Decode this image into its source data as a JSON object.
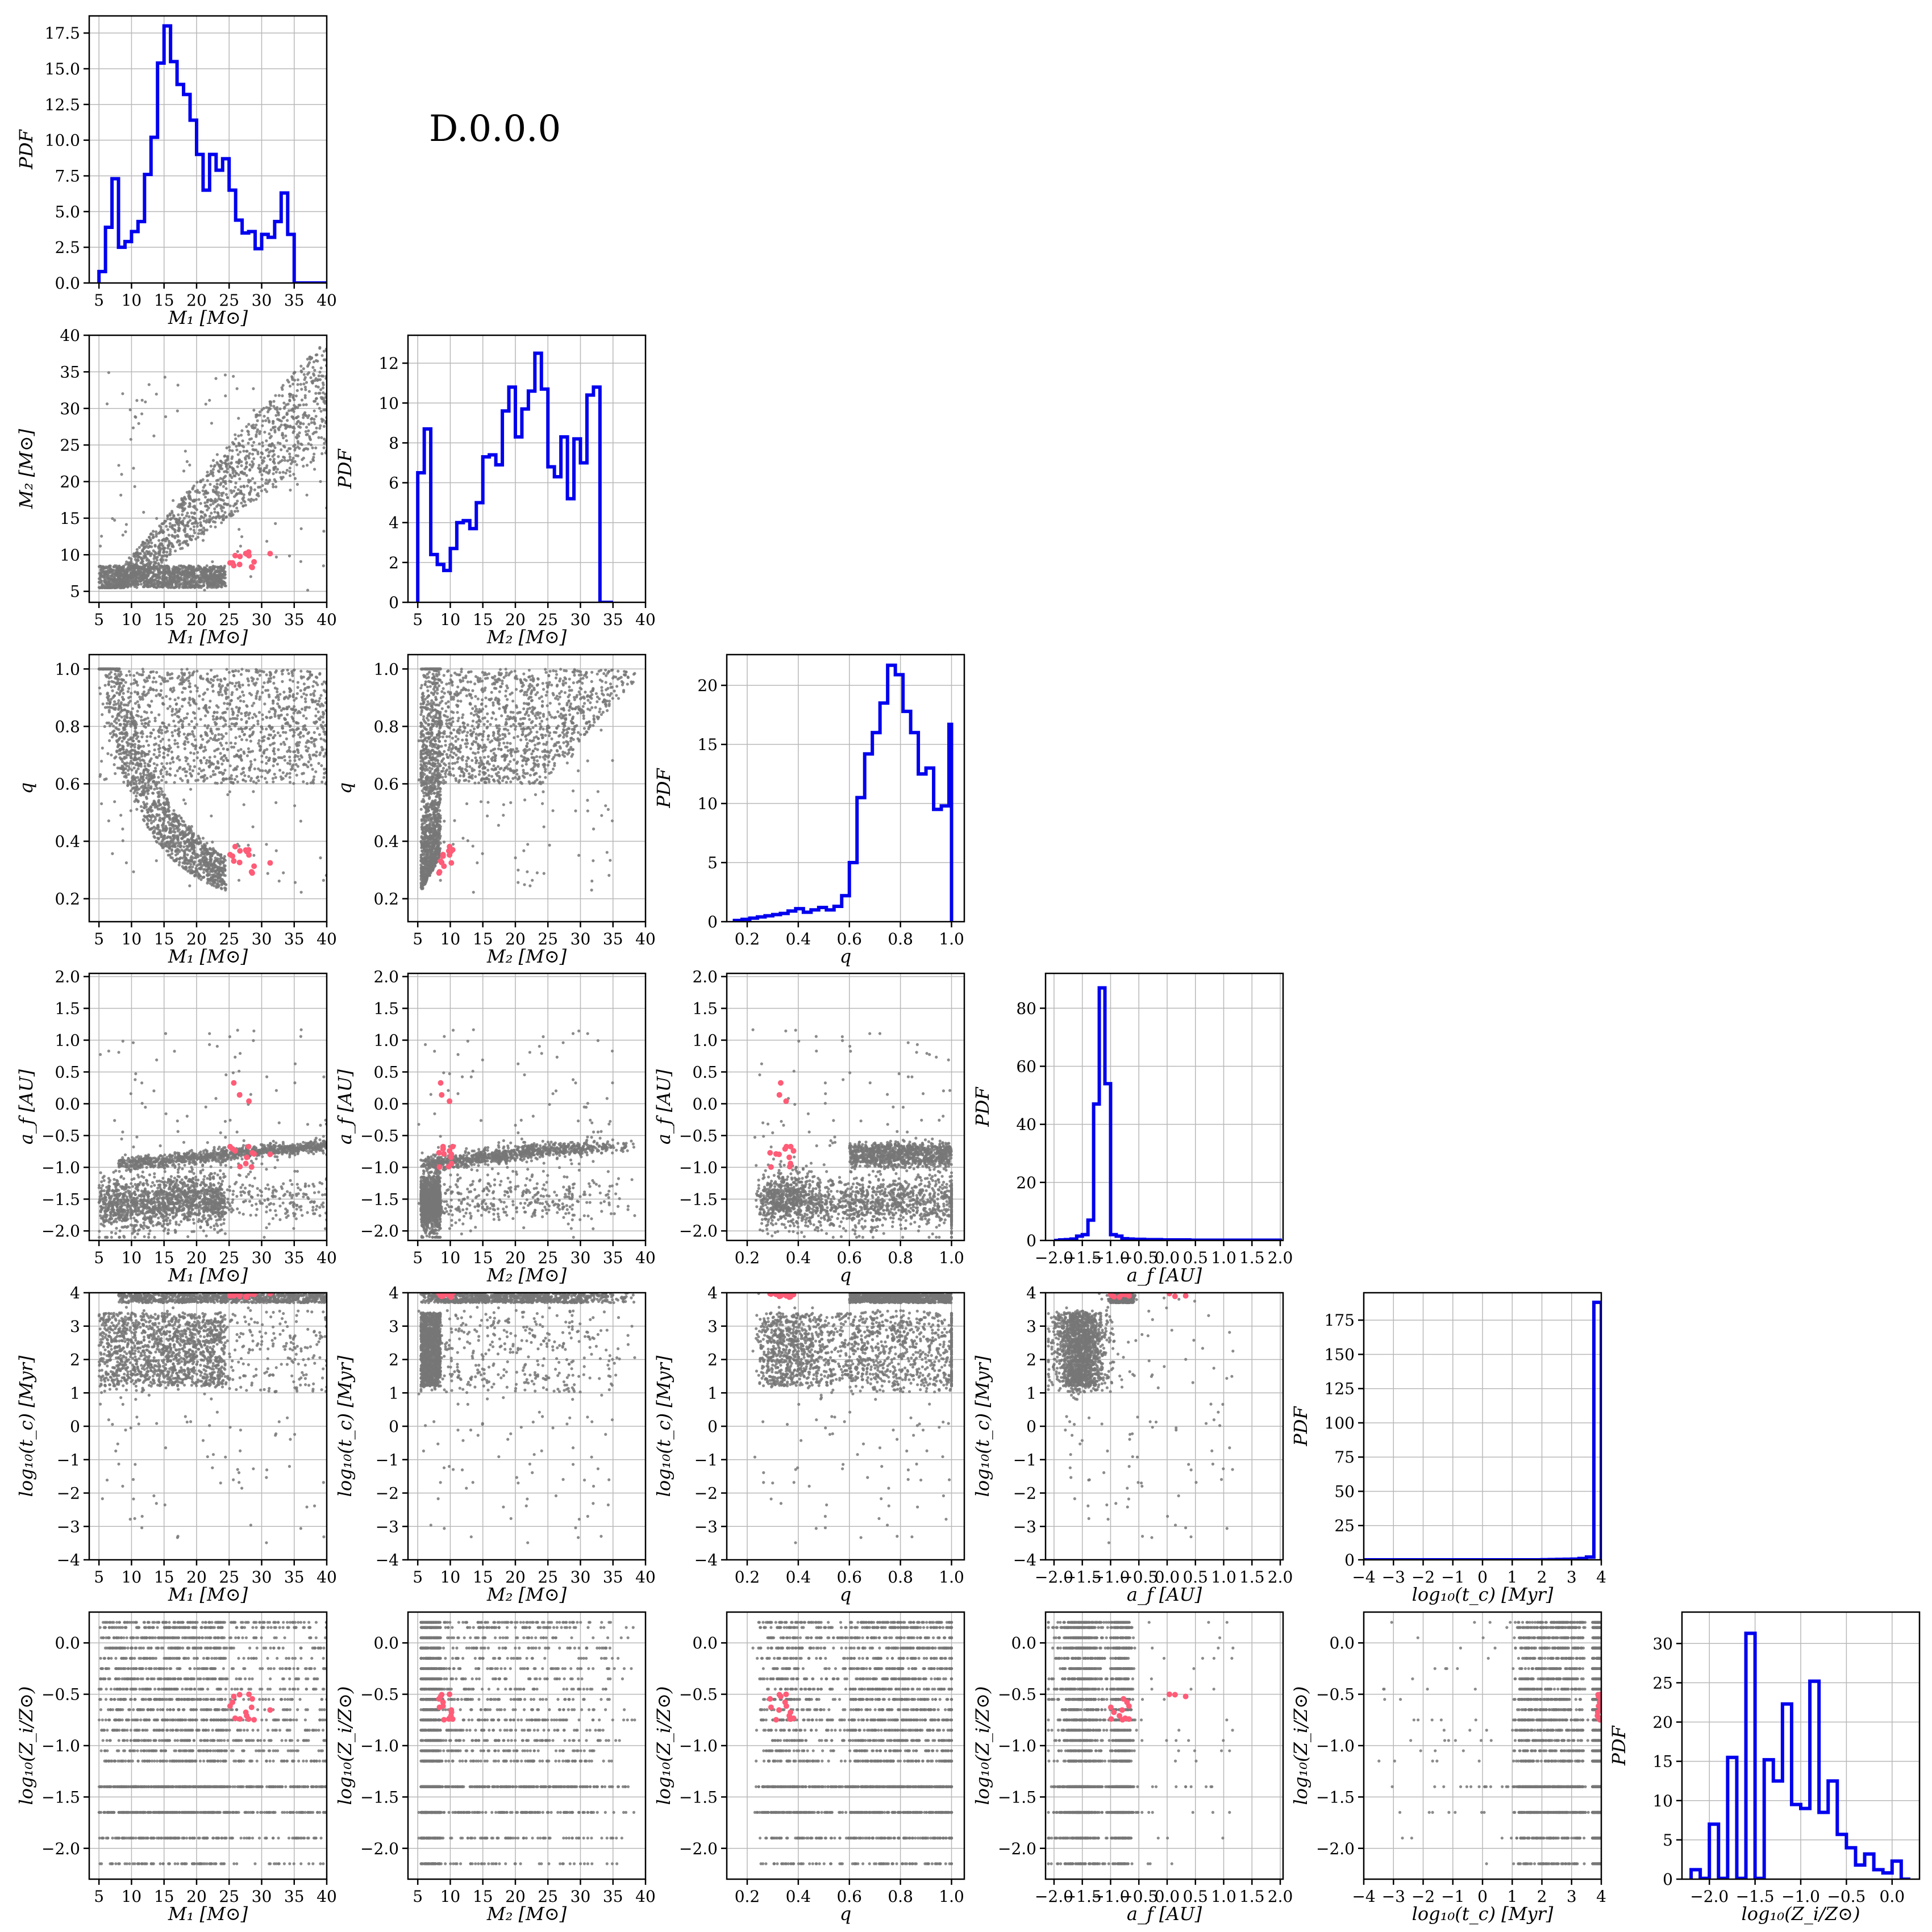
{
  "figure": {
    "label": "D.0.0.0",
    "histogram_ylabel": "PDF"
  },
  "colors": {
    "histogram": "#0000ee",
    "scatter": "#777777",
    "highlight": "#ff5c77"
  },
  "variables": [
    {
      "key": "m1",
      "label": "M₁ [M⊙]",
      "lim": [
        3.5,
        40
      ],
      "ticks": [
        "5",
        "10",
        "15",
        "20",
        "25",
        "30",
        "35",
        "40"
      ],
      "tick_values": [
        5,
        10,
        15,
        20,
        25,
        30,
        35,
        40
      ]
    },
    {
      "key": "m2",
      "label": "M₂ [M⊙]",
      "lim": [
        3.5,
        40
      ],
      "ticks": [
        "5",
        "10",
        "15",
        "20",
        "25",
        "30",
        "35",
        "40"
      ],
      "tick_values": [
        5,
        10,
        15,
        20,
        25,
        30,
        35,
        40
      ]
    },
    {
      "key": "q",
      "label": "q",
      "lim": [
        0.12,
        1.05
      ],
      "ticks": [
        "0.2",
        "0.4",
        "0.6",
        "0.8",
        "1.0"
      ],
      "tick_values": [
        0.2,
        0.4,
        0.6,
        0.8,
        1.0
      ]
    },
    {
      "key": "af",
      "label": "a_f [AU]",
      "lim": [
        -2.15,
        2.05
      ],
      "ticks": [
        "−2.0",
        "−1.5",
        "−1.0",
        "−0.5",
        "0.0",
        "0.5",
        "1.0",
        "1.5",
        "2.0"
      ],
      "tick_values": [
        -2.0,
        -1.5,
        -1.0,
        -0.5,
        0.0,
        0.5,
        1.0,
        1.5,
        2.0
      ]
    },
    {
      "key": "tc",
      "label": "log₁₀(t_c) [Myr]",
      "lim": [
        -4,
        4
      ],
      "ticks": [
        "−4",
        "−3",
        "−2",
        "−1",
        "0",
        "1",
        "2",
        "3",
        "4"
      ],
      "tick_values": [
        -4,
        -3,
        -2,
        -1,
        0,
        1,
        2,
        3,
        4
      ]
    },
    {
      "key": "z",
      "label": "log₁₀(Z_i/Z⊙)",
      "lim": [
        -2.3,
        0.3
      ],
      "ticks": [
        "−2.0",
        "−1.5",
        "−1.0",
        "−0.5",
        "0.0"
      ],
      "tick_values": [
        -2.0,
        -1.5,
        -1.0,
        -0.5,
        0.0
      ]
    }
  ],
  "axis_labels_printed": {
    "m1": "M₁ [M⊙]",
    "m2": "M₂ [M⊙]",
    "q": "q",
    "af": "a_f [AU]",
    "tc": "log₁₀(t_c) [Myr]",
    "z": "log₁₀(Z_i/Z⊙)"
  },
  "chart_data": [
    {
      "type": "histogram",
      "variable": "m1",
      "ylabel": "PDF",
      "ylim": [
        0,
        18.7
      ],
      "yticks": [
        "0.0",
        "2.5",
        "5.0",
        "7.5",
        "10.0",
        "12.5",
        "15.0",
        "17.5"
      ],
      "ytick_values": [
        0,
        2.5,
        5,
        7.5,
        10,
        12.5,
        15,
        17.5
      ],
      "edges": [
        5,
        6,
        7,
        8,
        9,
        10,
        11,
        12,
        13,
        14,
        15,
        16,
        17,
        18,
        19,
        20,
        21,
        22,
        23,
        24,
        25,
        26,
        27,
        28,
        29,
        30,
        31,
        32,
        33,
        34,
        35,
        36,
        37,
        38,
        39,
        40
      ],
      "values": [
        0.8,
        3.9,
        7.3,
        2.5,
        2.9,
        3.6,
        4.3,
        7.6,
        10.2,
        15.4,
        18.0,
        15.5,
        13.9,
        13.2,
        11.4,
        9.0,
        6.5,
        9.0,
        7.9,
        8.7,
        6.5,
        4.4,
        3.5,
        3.6,
        2.4,
        3.4,
        3.2,
        4.3,
        6.3,
        3.4,
        0.0,
        0.0,
        0.0,
        0.0,
        0.0
      ]
    },
    {
      "type": "histogram",
      "variable": "m2",
      "ylabel": "PDF",
      "ylim": [
        0,
        13.4
      ],
      "yticks": [
        "0",
        "2",
        "4",
        "6",
        "8",
        "10",
        "12"
      ],
      "ytick_values": [
        0,
        2,
        4,
        6,
        8,
        10,
        12
      ],
      "edges": [
        5,
        6,
        7,
        8,
        9,
        10,
        11,
        12,
        13,
        14,
        15,
        16,
        17,
        18,
        19,
        20,
        21,
        22,
        23,
        24,
        25,
        26,
        27,
        28,
        29,
        30,
        31,
        32,
        33,
        34,
        35
      ],
      "values": [
        6.5,
        8.7,
        2.4,
        1.9,
        1.6,
        2.7,
        4.0,
        4.1,
        3.7,
        5.0,
        7.3,
        7.4,
        6.9,
        9.6,
        10.8,
        8.3,
        9.7,
        10.6,
        12.5,
        10.7,
        6.8,
        6.3,
        8.3,
        5.2,
        8.2,
        7.0,
        10.4,
        10.8,
        0.0,
        0.0
      ]
    },
    {
      "type": "histogram",
      "variable": "q",
      "ylabel": "PDF",
      "ylim": [
        0,
        22.6
      ],
      "yticks": [
        "0",
        "5",
        "10",
        "15",
        "20"
      ],
      "ytick_values": [
        0,
        5,
        10,
        15,
        20
      ],
      "edges": [
        0.15,
        0.18,
        0.21,
        0.24,
        0.27,
        0.3,
        0.33,
        0.36,
        0.39,
        0.42,
        0.45,
        0.48,
        0.51,
        0.54,
        0.57,
        0.6,
        0.63,
        0.66,
        0.69,
        0.72,
        0.75,
        0.78,
        0.81,
        0.84,
        0.87,
        0.9,
        0.93,
        0.96,
        0.99,
        1.0
      ],
      "values": [
        0.1,
        0.2,
        0.3,
        0.4,
        0.5,
        0.6,
        0.7,
        0.9,
        1.1,
        0.8,
        1.0,
        1.2,
        1.0,
        1.3,
        2.2,
        5.0,
        10.5,
        14.2,
        16.0,
        18.5,
        21.7,
        20.9,
        17.8,
        16.0,
        12.5,
        13.0,
        9.5,
        9.8,
        16.7
      ]
    },
    {
      "type": "histogram",
      "variable": "af",
      "ylabel": "PDF",
      "ylim": [
        0,
        92
      ],
      "yticks": [
        "0",
        "20",
        "40",
        "60",
        "80"
      ],
      "ytick_values": [
        0,
        20,
        40,
        60,
        80
      ],
      "edges": [
        -2.0,
        -1.9,
        -1.8,
        -1.7,
        -1.6,
        -1.5,
        -1.4,
        -1.3,
        -1.2,
        -1.1,
        -1.0,
        -0.9,
        -0.8,
        -0.7,
        -0.6,
        -0.5,
        -0.4,
        -0.3,
        -0.2,
        -0.1,
        0.0,
        0.1,
        0.2,
        0.3,
        0.4,
        0.5,
        0.6,
        0.7,
        0.8,
        0.9,
        1.0,
        1.1,
        1.2,
        1.3,
        1.4,
        1.5,
        1.6,
        1.7,
        1.8,
        1.9,
        2.0
      ],
      "values": [
        0,
        0.2,
        0.3,
        0.5,
        1.5,
        2.0,
        7.0,
        47.0,
        87.0,
        54.0,
        2.0,
        1.5,
        0.6,
        0.5,
        0.4,
        0.4,
        0.3,
        0.3,
        0.3,
        0.2,
        0.2,
        0.2,
        0.2,
        0.2,
        0.1,
        0.1,
        0.1,
        0.1,
        0.1,
        0.1,
        0.1,
        0.1,
        0.1,
        0.1,
        0.1,
        0.1,
        0.1,
        0.1,
        0.1,
        0.1
      ]
    },
    {
      "type": "histogram",
      "variable": "tc",
      "ylabel": "PDF",
      "ylim": [
        0,
        195
      ],
      "yticks": [
        "0",
        "25",
        "50",
        "75",
        "100",
        "125",
        "150",
        "175"
      ],
      "ytick_values": [
        0,
        25,
        50,
        75,
        100,
        125,
        150,
        175
      ],
      "edges": [
        -4,
        -3.75,
        -3.5,
        -3.25,
        -3,
        -2.75,
        -2.5,
        -2.25,
        -2,
        -1.75,
        -1.5,
        -1.25,
        -1,
        -0.75,
        -0.5,
        -0.25,
        0,
        0.25,
        0.5,
        0.75,
        1,
        1.25,
        1.5,
        1.75,
        2,
        2.25,
        2.5,
        2.75,
        3,
        3.25,
        3.5,
        3.75,
        4
      ],
      "values": [
        0,
        0,
        0,
        0,
        0,
        0,
        0,
        0,
        0,
        0,
        0,
        0,
        0,
        0,
        0,
        0,
        0,
        0,
        0,
        0,
        0,
        0,
        0,
        0,
        0.1,
        0.2,
        0.3,
        0.4,
        0.5,
        1.0,
        2.0,
        188.0
      ]
    },
    {
      "type": "histogram",
      "variable": "z",
      "ylabel": "PDF",
      "ylim": [
        0,
        34
      ],
      "yticks": [
        "0",
        "5",
        "10",
        "15",
        "20",
        "25",
        "30"
      ],
      "ytick_values": [
        0,
        5,
        10,
        15,
        20,
        25,
        30
      ],
      "edges": [
        -2.2,
        -2.1,
        -2.0,
        -1.9,
        -1.8,
        -1.7,
        -1.6,
        -1.5,
        -1.4,
        -1.3,
        -1.2,
        -1.1,
        -1.0,
        -0.9,
        -0.8,
        -0.7,
        -0.6,
        -0.5,
        -0.4,
        -0.3,
        -0.2,
        -0.1,
        0.0,
        0.1,
        0.2
      ],
      "values": [
        1.2,
        0.1,
        7.0,
        0.1,
        15.5,
        0.1,
        31.3,
        0.1,
        15.2,
        12.5,
        22.3,
        9.5,
        9.0,
        25.2,
        8.5,
        12.5,
        5.7,
        4.0,
        1.8,
        3.2,
        1.2,
        0.8,
        2.3,
        0.0
      ]
    },
    {
      "type": "scatter",
      "x": "m1",
      "y": "m2",
      "description_key": "pair"
    },
    {
      "type": "scatter",
      "x": "m1",
      "y": "q"
    },
    {
      "type": "scatter",
      "x": "m2",
      "y": "q"
    },
    {
      "type": "scatter",
      "x": "m1",
      "y": "af"
    },
    {
      "type": "scatter",
      "x": "m2",
      "y": "af"
    },
    {
      "type": "scatter",
      "x": "q",
      "y": "af"
    },
    {
      "type": "scatter",
      "x": "m1",
      "y": "tc"
    },
    {
      "type": "scatter",
      "x": "m2",
      "y": "tc"
    },
    {
      "type": "scatter",
      "x": "q",
      "y": "tc"
    },
    {
      "type": "scatter",
      "x": "af",
      "y": "tc"
    },
    {
      "type": "scatter",
      "x": "m1",
      "y": "z"
    },
    {
      "type": "scatter",
      "x": "m2",
      "y": "z"
    },
    {
      "type": "scatter",
      "x": "q",
      "y": "z"
    },
    {
      "type": "scatter",
      "x": "af",
      "y": "z"
    },
    {
      "type": "scatter",
      "x": "tc",
      "y": "z"
    }
  ],
  "z_levels": [
    -2.15,
    -1.9,
    -1.65,
    -1.4,
    -1.15,
    -1.05,
    -0.95,
    -0.85,
    -0.75,
    -0.65,
    -0.55,
    -0.45,
    -0.35,
    -0.25,
    -0.15,
    -0.05,
    0.05,
    0.15,
    0.2
  ]
}
